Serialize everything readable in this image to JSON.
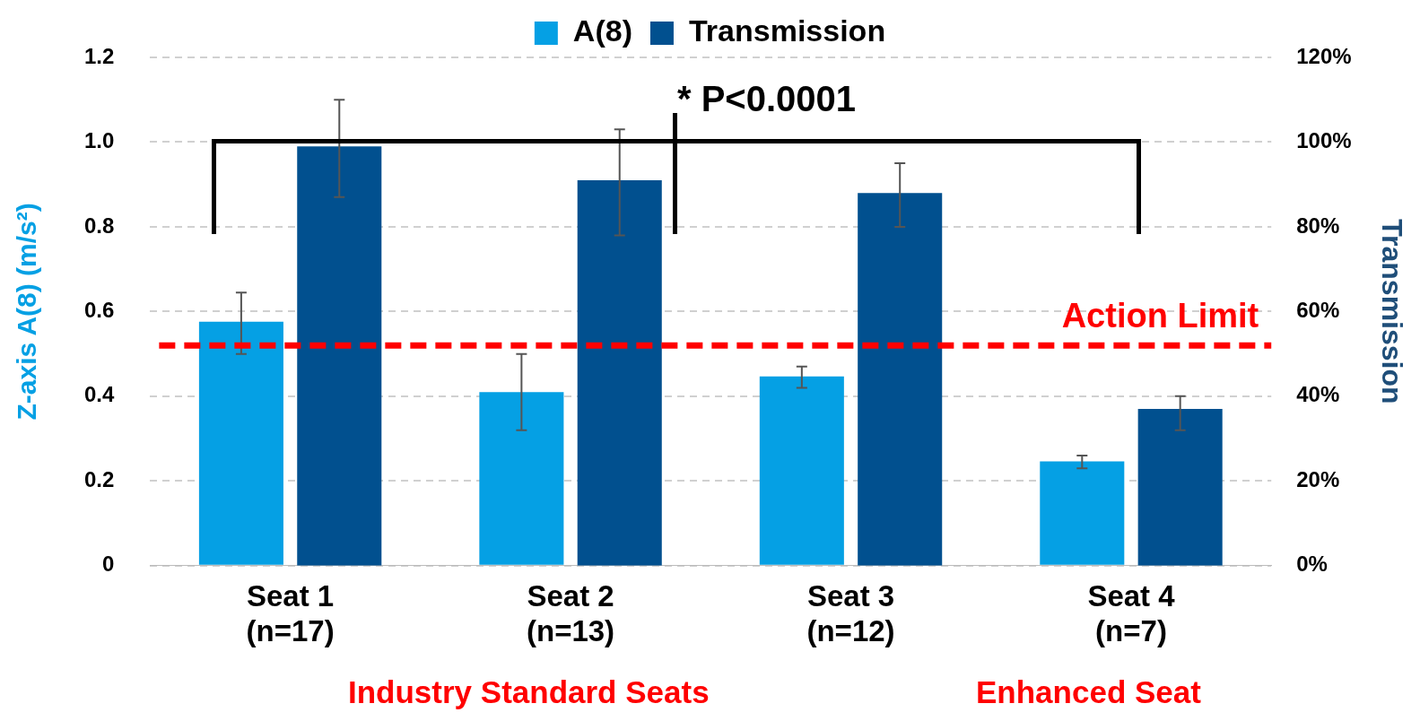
{
  "chart_data": {
    "type": "bar",
    "categories": [
      "Seat 1\n(n=17)",
      "Seat 2\n(n=13)",
      "Seat 3\n(n=12)",
      "Seat 4\n(n=7)"
    ],
    "series": [
      {
        "name": "A(8)",
        "color": "#05a0e4",
        "values": [
          0.576,
          0.41,
          0.447,
          0.246
        ],
        "errors": [
          [
            0.5,
            0.645
          ],
          [
            0.32,
            0.5
          ],
          [
            0.42,
            0.47
          ],
          [
            0.23,
            0.26
          ]
        ]
      },
      {
        "name": "Transmission",
        "color": "#01508f",
        "axis": "y2",
        "values": [
          99,
          91,
          88,
          37
        ],
        "errors": [
          [
            87,
            110
          ],
          [
            78,
            103
          ],
          [
            80,
            95
          ],
          [
            32,
            40
          ]
        ]
      }
    ],
    "ylabel": "Z-axis A(8) (m/s²)",
    "y2label": "Transmission",
    "ylim": [
      0,
      1.2
    ],
    "yticks": [
      0,
      0.2,
      0.4,
      0.6,
      0.8,
      {
        "value": 1,
        "label": "1.0"
      },
      1.2
    ],
    "y2lim": [
      0,
      120
    ],
    "y2ticks": [
      {
        "value": 0,
        "label": "0%"
      },
      {
        "value": 20,
        "label": "20%"
      },
      {
        "value": 40,
        "label": "40%"
      },
      {
        "value": 60,
        "label": "60%"
      },
      {
        "value": 80,
        "label": "80%"
      },
      {
        "value": 100,
        "label": "100%"
      },
      {
        "value": 120,
        "label": "120%"
      }
    ],
    "ref_lines": [
      {
        "axis": "y",
        "value": 0.52,
        "label": "Action Limit",
        "color": "#ff0000",
        "line_style": "dashed"
      }
    ],
    "annotations": [
      "* P<0.0001",
      "Industry Standard Seats",
      "Enhanced Seat"
    ],
    "grid": "y",
    "legend": "top"
  }
}
